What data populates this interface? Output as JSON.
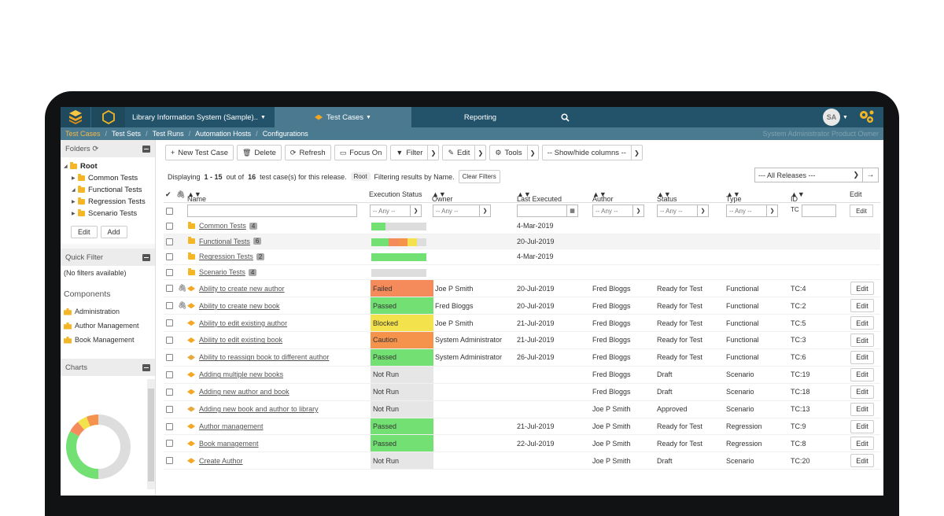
{
  "topnav": {
    "project": "Library Information System (Sample)..",
    "artifact": "Test Cases",
    "reporting": "Reporting",
    "avatar": "SA"
  },
  "subnav": {
    "items": [
      "Test Cases",
      "Test Sets",
      "Test Runs",
      "Automation Hosts",
      "Configurations"
    ],
    "user": "System Administrator  Product Owner"
  },
  "sidebar": {
    "folders_title": "Folders",
    "tree": [
      {
        "label": "Root",
        "bold": true
      },
      {
        "label": "Common Tests"
      },
      {
        "label": "Functional Tests"
      },
      {
        "label": "Regression Tests"
      },
      {
        "label": "Scenario Tests"
      }
    ],
    "edit_label": "Edit",
    "add_label": "Add",
    "quick_filter_title": "Quick Filter",
    "quick_filter_text": "(No filters available)",
    "components_title": "Components",
    "components": [
      "Administration",
      "Author Management",
      "Book Management"
    ],
    "charts_title": "Charts"
  },
  "toolbar": {
    "new_label": "New Test Case",
    "delete_label": "Delete",
    "refresh_label": "Refresh",
    "focus_label": "Focus On",
    "filter_label": "Filter",
    "edit_label": "Edit",
    "tools_label": "Tools",
    "columns_label": "-- Show/hide columns --"
  },
  "display": {
    "prefix": "Displaying",
    "range": "1 - 15",
    "middle": "out of",
    "total": "16",
    "suffix": "test case(s) for this release.",
    "root_badge": "Root",
    "filter_text": "Filtering results by Name.",
    "clear_label": "Clear Filters",
    "releases_label": "--- All Releases ---"
  },
  "columns": {
    "name": "Name",
    "exec": "Execution Status",
    "owner": "Owner",
    "last": "Last Executed",
    "author": "Author",
    "status": "Status",
    "type": "Type",
    "id": "ID",
    "edit": "Edit"
  },
  "filters": {
    "any": "-- Any --",
    "id_prefix": "TC",
    "edit_label": "Edit"
  },
  "folders": [
    {
      "name": "Common Tests",
      "count": "4",
      "date": "4-Mar-2019",
      "bar": [
        {
          "c": "#72e072",
          "v": 0.25
        },
        {
          "c": "#dddddd",
          "v": 0.75
        }
      ]
    },
    {
      "name": "Functional Tests",
      "count": "6",
      "date": "20-Jul-2019",
      "bar": [
        {
          "c": "#72e072",
          "v": 0.32
        },
        {
          "c": "#f58a5a",
          "v": 0.18
        },
        {
          "c": "#f5934c",
          "v": 0.16
        },
        {
          "c": "#f4e24c",
          "v": 0.17
        },
        {
          "c": "#dddddd",
          "v": 0.17
        }
      ]
    },
    {
      "name": "Regression Tests",
      "count": "2",
      "date": "4-Mar-2019",
      "bar": [
        {
          "c": "#72e072",
          "v": 1.0
        }
      ]
    },
    {
      "name": "Scenario Tests",
      "count": "4",
      "date": "",
      "bar": [
        {
          "c": "#dddddd",
          "v": 1.0
        }
      ]
    }
  ],
  "rows": [
    {
      "name": "Ability to create new author",
      "attach": true,
      "exec": "Failed",
      "cls": "s-failed",
      "owner": "Joe P Smith",
      "last": "20-Jul-2019",
      "author": "Fred Bloggs",
      "status": "Ready for Test",
      "type": "Functional",
      "id": "TC:4"
    },
    {
      "name": "Ability to create new book",
      "attach": true,
      "exec": "Passed",
      "cls": "s-passed",
      "owner": "Fred Bloggs",
      "last": "20-Jul-2019",
      "author": "Fred Bloggs",
      "status": "Ready for Test",
      "type": "Functional",
      "id": "TC:2"
    },
    {
      "name": "Ability to edit existing author",
      "attach": false,
      "exec": "Blocked",
      "cls": "s-blocked",
      "owner": "Joe P Smith",
      "last": "21-Jul-2019",
      "author": "Fred Bloggs",
      "status": "Ready for Test",
      "type": "Functional",
      "id": "TC:5"
    },
    {
      "name": "Ability to edit existing book",
      "attach": false,
      "exec": "Caution",
      "cls": "s-caution",
      "owner": "System Administrator",
      "last": "21-Jul-2019",
      "author": "Fred Bloggs",
      "status": "Ready for Test",
      "type": "Functional",
      "id": "TC:3"
    },
    {
      "name": "Ability to reassign book to different author",
      "attach": false,
      "exec": "Passed",
      "cls": "s-passed",
      "owner": "System Administrator",
      "last": "26-Jul-2019",
      "author": "Fred Bloggs",
      "status": "Ready for Test",
      "type": "Functional",
      "id": "TC:6",
      "stack": true
    },
    {
      "name": "Adding multiple new books",
      "attach": false,
      "exec": "Not Run",
      "cls": "s-notrun",
      "owner": "",
      "last": "",
      "author": "Fred Bloggs",
      "status": "Draft",
      "type": "Scenario",
      "id": "TC:19"
    },
    {
      "name": "Adding new author and book",
      "attach": false,
      "exec": "Not Run",
      "cls": "s-notrun",
      "owner": "",
      "last": "",
      "author": "Fred Bloggs",
      "status": "Draft",
      "type": "Scenario",
      "id": "TC:18"
    },
    {
      "name": "Adding new book and author to library",
      "attach": false,
      "exec": "Not Run",
      "cls": "s-notrun",
      "owner": "",
      "last": "",
      "author": "Joe P Smith",
      "status": "Approved",
      "type": "Scenario",
      "id": "TC:13",
      "stack": true
    },
    {
      "name": "Author management",
      "attach": false,
      "exec": "Passed",
      "cls": "s-passed",
      "owner": "",
      "last": "21-Jul-2019",
      "author": "Joe P Smith",
      "status": "Ready for Test",
      "type": "Regression",
      "id": "TC:9"
    },
    {
      "name": "Book management",
      "attach": false,
      "exec": "Passed",
      "cls": "s-passed",
      "owner": "",
      "last": "22-Jul-2019",
      "author": "Joe P Smith",
      "status": "Ready for Test",
      "type": "Regression",
      "id": "TC:8"
    },
    {
      "name": "Create Author",
      "attach": false,
      "exec": "Not Run",
      "cls": "s-notrun",
      "owner": "",
      "last": "",
      "author": "Joe P Smith",
      "status": "Draft",
      "type": "Scenario",
      "id": "TC:20"
    }
  ],
  "donut": [
    {
      "c": "#dddddd",
      "v": 0.5
    },
    {
      "c": "#72e072",
      "v": 0.33
    },
    {
      "c": "#f58a5a",
      "v": 0.06
    },
    {
      "c": "#f4e24c",
      "v": 0.05
    },
    {
      "c": "#f5934c",
      "v": 0.06
    }
  ]
}
